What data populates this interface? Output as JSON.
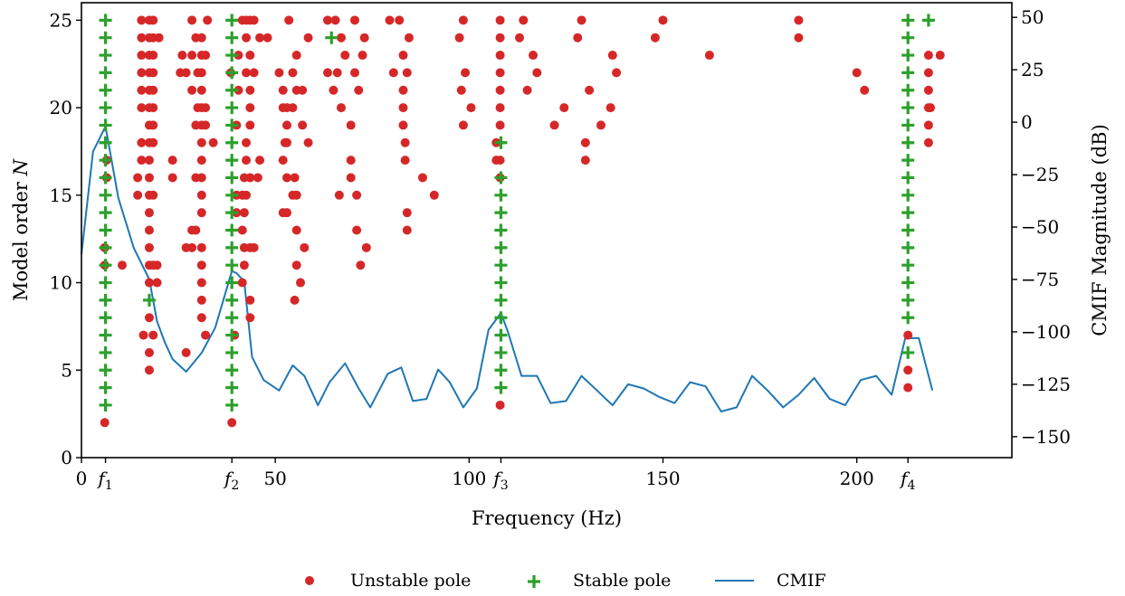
{
  "chart_data": {
    "type": "scatter",
    "xlabel": "Frequency (Hz)",
    "ylabel_left": "Model order N",
    "ylabel_left_parts": {
      "text": "Model order ",
      "italic": "N"
    },
    "ylabel_right": "CMIF Magnitude (dB)",
    "xlim": [
      0,
      240
    ],
    "ylim_left": [
      0,
      26
    ],
    "ylim_right": [
      -160,
      57
    ],
    "x_ticks": [
      {
        "value": 0,
        "label": "0"
      },
      {
        "value": 6.2,
        "label": "f",
        "sub": "1"
      },
      {
        "value": 38.8,
        "label": "f",
        "sub": "2"
      },
      {
        "value": 50,
        "label": "50"
      },
      {
        "value": 100,
        "label": "100"
      },
      {
        "value": 108.2,
        "label": "f",
        "sub": "3"
      },
      {
        "value": 150,
        "label": "150"
      },
      {
        "value": 200,
        "label": "200"
      },
      {
        "value": 213.2,
        "label": "f",
        "sub": "4"
      }
    ],
    "y_ticks_left": [
      0,
      5,
      10,
      15,
      20,
      25
    ],
    "y_ticks_right": [
      50,
      25,
      0,
      -25,
      -50,
      -75,
      -100,
      -125,
      -150
    ],
    "legend": {
      "position": "bottom-center",
      "items": [
        {
          "label": "Unstable pole",
          "marker": "circle",
          "color": "#d62728"
        },
        {
          "label": "Stable pole",
          "marker": "plus",
          "color": "#2ca02c"
        },
        {
          "label": "CMIF",
          "marker": "line",
          "color": "#1f77b4"
        }
      ]
    },
    "colors": {
      "unstable": "#d62728",
      "stable": "#2ca02c",
      "cmif": "#1f77b4"
    },
    "stable_lines": [
      {
        "x": 6.2,
        "orders": [
          3,
          4,
          5,
          6,
          7,
          8,
          9,
          10,
          11,
          12,
          13,
          14,
          15,
          16,
          17,
          18,
          19,
          20,
          21,
          22,
          23,
          24,
          25
        ]
      },
      {
        "x": 38.8,
        "orders": [
          3,
          4,
          5,
          6,
          7,
          8,
          9,
          10,
          11,
          12,
          13,
          14,
          15,
          16,
          17,
          18,
          19,
          20,
          21,
          22,
          23,
          24,
          25
        ]
      },
      {
        "x": 108.2,
        "orders": [
          4,
          5,
          6,
          7,
          8,
          9,
          10,
          11,
          12,
          13,
          14,
          15,
          16,
          18
        ]
      },
      {
        "x": 213.2,
        "orders": [
          8,
          9,
          10,
          11,
          12,
          13,
          14,
          15,
          16,
          17,
          18,
          19,
          20,
          21,
          22,
          23,
          24,
          25
        ]
      }
    ],
    "stable_extra": [
      {
        "x": 17.5,
        "y": 9
      },
      {
        "x": 64.5,
        "y": 24
      },
      {
        "x": 213.2,
        "y": 6
      },
      {
        "x": 218.5,
        "y": 25
      }
    ],
    "unstable": [
      {
        "x": 6,
        "y": 2
      },
      {
        "x": 6,
        "y": 11
      },
      {
        "x": 6,
        "y": 12
      },
      {
        "x": 6.5,
        "y": 16
      },
      {
        "x": 6.5,
        "y": 17
      },
      {
        "x": 10.5,
        "y": 11
      },
      {
        "x": 14.5,
        "y": 15
      },
      {
        "x": 14.5,
        "y": 16
      },
      {
        "x": 15.5,
        "y": 17
      },
      {
        "x": 15.5,
        "y": 18
      },
      {
        "x": 15.5,
        "y": 20
      },
      {
        "x": 15.5,
        "y": 21
      },
      {
        "x": 15.5,
        "y": 22
      },
      {
        "x": 15.5,
        "y": 23
      },
      {
        "x": 15.5,
        "y": 24
      },
      {
        "x": 15.5,
        "y": 25
      },
      {
        "x": 16,
        "y": 7
      },
      {
        "x": 17.5,
        "y": 5
      },
      {
        "x": 17.5,
        "y": 6
      },
      {
        "x": 17.5,
        "y": 8
      },
      {
        "x": 17.5,
        "y": 10
      },
      {
        "x": 17.5,
        "y": 11
      },
      {
        "x": 17.5,
        "y": 12
      },
      {
        "x": 17.5,
        "y": 13
      },
      {
        "x": 17.5,
        "y": 14
      },
      {
        "x": 17.5,
        "y": 15
      },
      {
        "x": 17.5,
        "y": 16
      },
      {
        "x": 17.5,
        "y": 17
      },
      {
        "x": 17.5,
        "y": 18
      },
      {
        "x": 17.5,
        "y": 19
      },
      {
        "x": 17.5,
        "y": 20
      },
      {
        "x": 17.5,
        "y": 21
      },
      {
        "x": 17.5,
        "y": 22
      },
      {
        "x": 17.5,
        "y": 23
      },
      {
        "x": 17.5,
        "y": 24
      },
      {
        "x": 17.5,
        "y": 25
      },
      {
        "x": 18.5,
        "y": 7
      },
      {
        "x": 18.5,
        "y": 11
      },
      {
        "x": 18.5,
        "y": 15
      },
      {
        "x": 18.5,
        "y": 18
      },
      {
        "x": 18.5,
        "y": 19
      },
      {
        "x": 18.5,
        "y": 20
      },
      {
        "x": 18.5,
        "y": 21
      },
      {
        "x": 18.5,
        "y": 22
      },
      {
        "x": 18.5,
        "y": 23
      },
      {
        "x": 18.5,
        "y": 24
      },
      {
        "x": 18.5,
        "y": 25
      },
      {
        "x": 19.5,
        "y": 10
      },
      {
        "x": 19.5,
        "y": 11
      },
      {
        "x": 20,
        "y": 24
      },
      {
        "x": 23.5,
        "y": 16
      },
      {
        "x": 23.5,
        "y": 17
      },
      {
        "x": 25.5,
        "y": 22
      },
      {
        "x": 26,
        "y": 23
      },
      {
        "x": 27,
        "y": 6
      },
      {
        "x": 27,
        "y": 12
      },
      {
        "x": 27,
        "y": 22
      },
      {
        "x": 28.5,
        "y": 12
      },
      {
        "x": 28.5,
        "y": 13
      },
      {
        "x": 28.5,
        "y": 21
      },
      {
        "x": 28.5,
        "y": 23
      },
      {
        "x": 28.5,
        "y": 25
      },
      {
        "x": 29.5,
        "y": 13
      },
      {
        "x": 29.5,
        "y": 16
      },
      {
        "x": 29.5,
        "y": 19
      },
      {
        "x": 29.5,
        "y": 24
      },
      {
        "x": 30,
        "y": 20
      },
      {
        "x": 30,
        "y": 22
      },
      {
        "x": 31,
        "y": 8
      },
      {
        "x": 31,
        "y": 9
      },
      {
        "x": 31,
        "y": 10
      },
      {
        "x": 31,
        "y": 11
      },
      {
        "x": 31,
        "y": 12
      },
      {
        "x": 31,
        "y": 14
      },
      {
        "x": 31,
        "y": 15
      },
      {
        "x": 31,
        "y": 16
      },
      {
        "x": 31,
        "y": 17
      },
      {
        "x": 31,
        "y": 18
      },
      {
        "x": 31,
        "y": 19
      },
      {
        "x": 31,
        "y": 20
      },
      {
        "x": 31,
        "y": 21
      },
      {
        "x": 31,
        "y": 22
      },
      {
        "x": 31,
        "y": 23
      },
      {
        "x": 31,
        "y": 24
      },
      {
        "x": 32,
        "y": 7
      },
      {
        "x": 32,
        "y": 19
      },
      {
        "x": 32,
        "y": 20
      },
      {
        "x": 32,
        "y": 23
      },
      {
        "x": 32.5,
        "y": 25
      },
      {
        "x": 34,
        "y": 18
      },
      {
        "x": 38.8,
        "y": 2
      },
      {
        "x": 38.5,
        "y": 22
      },
      {
        "x": 39.5,
        "y": 7
      },
      {
        "x": 40,
        "y": 14
      },
      {
        "x": 40,
        "y": 15
      },
      {
        "x": 40,
        "y": 19
      },
      {
        "x": 40.5,
        "y": 21
      },
      {
        "x": 40.5,
        "y": 23
      },
      {
        "x": 41.5,
        "y": 10
      },
      {
        "x": 41.5,
        "y": 13
      },
      {
        "x": 41.5,
        "y": 15
      },
      {
        "x": 41.5,
        "y": 25
      },
      {
        "x": 42,
        "y": 11
      },
      {
        "x": 42,
        "y": 12
      },
      {
        "x": 42,
        "y": 14
      },
      {
        "x": 42,
        "y": 16
      },
      {
        "x": 42.5,
        "y": 15
      },
      {
        "x": 42.5,
        "y": 17
      },
      {
        "x": 42.5,
        "y": 18
      },
      {
        "x": 42.5,
        "y": 22
      },
      {
        "x": 42.5,
        "y": 24
      },
      {
        "x": 42.5,
        "y": 25
      },
      {
        "x": 43.5,
        "y": 8
      },
      {
        "x": 43.5,
        "y": 9
      },
      {
        "x": 43.5,
        "y": 12
      },
      {
        "x": 43.5,
        "y": 16
      },
      {
        "x": 43.5,
        "y": 19
      },
      {
        "x": 43.5,
        "y": 20
      },
      {
        "x": 43.5,
        "y": 21
      },
      {
        "x": 43.5,
        "y": 23
      },
      {
        "x": 43.5,
        "y": 25
      },
      {
        "x": 44.5,
        "y": 12
      },
      {
        "x": 44.5,
        "y": 22
      },
      {
        "x": 44.5,
        "y": 25
      },
      {
        "x": 45.5,
        "y": 16
      },
      {
        "x": 46,
        "y": 17
      },
      {
        "x": 46,
        "y": 24
      },
      {
        "x": 48,
        "y": 24
      },
      {
        "x": 51,
        "y": 22
      },
      {
        "x": 52,
        "y": 14
      },
      {
        "x": 52,
        "y": 17
      },
      {
        "x": 52,
        "y": 20
      },
      {
        "x": 52,
        "y": 21
      },
      {
        "x": 52.5,
        "y": 18
      },
      {
        "x": 53,
        "y": 14
      },
      {
        "x": 53,
        "y": 16
      },
      {
        "x": 53,
        "y": 18
      },
      {
        "x": 53,
        "y": 19
      },
      {
        "x": 53,
        "y": 20
      },
      {
        "x": 53.5,
        "y": 25
      },
      {
        "x": 54.5,
        "y": 15
      },
      {
        "x": 54.5,
        "y": 20
      },
      {
        "x": 54.5,
        "y": 22
      },
      {
        "x": 55,
        "y": 9
      },
      {
        "x": 55,
        "y": 16
      },
      {
        "x": 55.5,
        "y": 11
      },
      {
        "x": 55.5,
        "y": 13
      },
      {
        "x": 55.5,
        "y": 15
      },
      {
        "x": 55.5,
        "y": 21
      },
      {
        "x": 55.5,
        "y": 23
      },
      {
        "x": 56.5,
        "y": 10
      },
      {
        "x": 57,
        "y": 19
      },
      {
        "x": 57,
        "y": 21
      },
      {
        "x": 57.5,
        "y": 12
      },
      {
        "x": 58.5,
        "y": 18
      },
      {
        "x": 58.5,
        "y": 24
      },
      {
        "x": 63.5,
        "y": 25
      },
      {
        "x": 63.5,
        "y": 22
      },
      {
        "x": 65,
        "y": 21
      },
      {
        "x": 65.5,
        "y": 25
      },
      {
        "x": 66,
        "y": 22
      },
      {
        "x": 66.5,
        "y": 15
      },
      {
        "x": 67,
        "y": 20
      },
      {
        "x": 67,
        "y": 24
      },
      {
        "x": 68,
        "y": 23
      },
      {
        "x": 69.5,
        "y": 16
      },
      {
        "x": 69.5,
        "y": 17
      },
      {
        "x": 69.5,
        "y": 19
      },
      {
        "x": 70.5,
        "y": 25
      },
      {
        "x": 70.5,
        "y": 22
      },
      {
        "x": 71,
        "y": 13
      },
      {
        "x": 71,
        "y": 15
      },
      {
        "x": 71.5,
        "y": 21
      },
      {
        "x": 72,
        "y": 11
      },
      {
        "x": 72.5,
        "y": 23
      },
      {
        "x": 73,
        "y": 24
      },
      {
        "x": 73.5,
        "y": 12
      },
      {
        "x": 79.5,
        "y": 25
      },
      {
        "x": 80.5,
        "y": 22
      },
      {
        "x": 82,
        "y": 25
      },
      {
        "x": 83,
        "y": 19
      },
      {
        "x": 83,
        "y": 20
      },
      {
        "x": 83,
        "y": 21
      },
      {
        "x": 83,
        "y": 23
      },
      {
        "x": 83.5,
        "y": 17
      },
      {
        "x": 83.5,
        "y": 18
      },
      {
        "x": 84,
        "y": 13
      },
      {
        "x": 84,
        "y": 14
      },
      {
        "x": 84,
        "y": 22
      },
      {
        "x": 84.5,
        "y": 24
      },
      {
        "x": 88,
        "y": 16
      },
      {
        "x": 91,
        "y": 15
      },
      {
        "x": 97.5,
        "y": 24
      },
      {
        "x": 98,
        "y": 21
      },
      {
        "x": 98.5,
        "y": 19
      },
      {
        "x": 98.5,
        "y": 25
      },
      {
        "x": 99,
        "y": 22
      },
      {
        "x": 100.5,
        "y": 20
      },
      {
        "x": 107,
        "y": 17
      },
      {
        "x": 107,
        "y": 18
      },
      {
        "x": 108,
        "y": 3
      },
      {
        "x": 108,
        "y": 16
      },
      {
        "x": 108,
        "y": 17
      },
      {
        "x": 108,
        "y": 19
      },
      {
        "x": 108,
        "y": 20
      },
      {
        "x": 108,
        "y": 21
      },
      {
        "x": 108,
        "y": 22
      },
      {
        "x": 108,
        "y": 23
      },
      {
        "x": 108,
        "y": 24
      },
      {
        "x": 108,
        "y": 25
      },
      {
        "x": 113,
        "y": 24
      },
      {
        "x": 114,
        "y": 25
      },
      {
        "x": 115,
        "y": 21
      },
      {
        "x": 116.5,
        "y": 23
      },
      {
        "x": 117.5,
        "y": 22
      },
      {
        "x": 122,
        "y": 19
      },
      {
        "x": 124.5,
        "y": 20
      },
      {
        "x": 128,
        "y": 24
      },
      {
        "x": 129,
        "y": 25
      },
      {
        "x": 130,
        "y": 17
      },
      {
        "x": 130,
        "y": 18
      },
      {
        "x": 131,
        "y": 21
      },
      {
        "x": 134,
        "y": 19
      },
      {
        "x": 136.5,
        "y": 20
      },
      {
        "x": 137,
        "y": 23
      },
      {
        "x": 138,
        "y": 22
      },
      {
        "x": 148,
        "y": 24
      },
      {
        "x": 150,
        "y": 25
      },
      {
        "x": 162,
        "y": 23
      },
      {
        "x": 185,
        "y": 24
      },
      {
        "x": 185,
        "y": 25
      },
      {
        "x": 200,
        "y": 22
      },
      {
        "x": 202,
        "y": 21
      },
      {
        "x": 213.2,
        "y": 4
      },
      {
        "x": 213.2,
        "y": 5
      },
      {
        "x": 213.2,
        "y": 7
      },
      {
        "x": 218.5,
        "y": 18
      },
      {
        "x": 218.5,
        "y": 19
      },
      {
        "x": 218.5,
        "y": 20
      },
      {
        "x": 218.5,
        "y": 21
      },
      {
        "x": 218.5,
        "y": 22
      },
      {
        "x": 218.5,
        "y": 23
      },
      {
        "x": 219,
        "y": 20
      },
      {
        "x": 221.5,
        "y": 23
      }
    ],
    "cmif": [
      {
        "x": 0,
        "y": -63
      },
      {
        "x": 3,
        "y": -14
      },
      {
        "x": 6.2,
        "y": -2
      },
      {
        "x": 9.5,
        "y": -36
      },
      {
        "x": 13.5,
        "y": -60
      },
      {
        "x": 17.5,
        "y": -75
      },
      {
        "x": 19.5,
        "y": -95
      },
      {
        "x": 21.5,
        "y": -105
      },
      {
        "x": 23.5,
        "y": -113
      },
      {
        "x": 27,
        "y": -119
      },
      {
        "x": 31,
        "y": -110
      },
      {
        "x": 34.5,
        "y": -98
      },
      {
        "x": 38.8,
        "y": -71
      },
      {
        "x": 40,
        "y": -72
      },
      {
        "x": 42,
        "y": -76
      },
      {
        "x": 44,
        "y": -112
      },
      {
        "x": 47,
        "y": -123
      },
      {
        "x": 51,
        "y": -128
      },
      {
        "x": 54.5,
        "y": -116
      },
      {
        "x": 57.5,
        "y": -121
      },
      {
        "x": 61,
        "y": -135
      },
      {
        "x": 64,
        "y": -124
      },
      {
        "x": 68,
        "y": -115
      },
      {
        "x": 71.5,
        "y": -127
      },
      {
        "x": 74.5,
        "y": -136
      },
      {
        "x": 79,
        "y": -120
      },
      {
        "x": 82.5,
        "y": -117
      },
      {
        "x": 85.5,
        "y": -133
      },
      {
        "x": 89,
        "y": -132
      },
      {
        "x": 92,
        "y": -118
      },
      {
        "x": 95,
        "y": -124
      },
      {
        "x": 98.5,
        "y": -136
      },
      {
        "x": 102,
        "y": -127
      },
      {
        "x": 105,
        "y": -99
      },
      {
        "x": 108.2,
        "y": -91
      },
      {
        "x": 110,
        "y": -100
      },
      {
        "x": 113.5,
        "y": -121
      },
      {
        "x": 117.5,
        "y": -121
      },
      {
        "x": 121,
        "y": -134
      },
      {
        "x": 125,
        "y": -133
      },
      {
        "x": 129,
        "y": -121
      },
      {
        "x": 133,
        "y": -128
      },
      {
        "x": 137,
        "y": -135
      },
      {
        "x": 141,
        "y": -125
      },
      {
        "x": 145,
        "y": -127
      },
      {
        "x": 149,
        "y": -131
      },
      {
        "x": 153,
        "y": -134
      },
      {
        "x": 157,
        "y": -124
      },
      {
        "x": 161,
        "y": -126
      },
      {
        "x": 165,
        "y": -138
      },
      {
        "x": 169,
        "y": -136
      },
      {
        "x": 173,
        "y": -121
      },
      {
        "x": 177,
        "y": -128
      },
      {
        "x": 181,
        "y": -136
      },
      {
        "x": 185,
        "y": -130
      },
      {
        "x": 189,
        "y": -122
      },
      {
        "x": 193,
        "y": -132
      },
      {
        "x": 197,
        "y": -135
      },
      {
        "x": 201,
        "y": -123
      },
      {
        "x": 205,
        "y": -121
      },
      {
        "x": 209,
        "y": -130
      },
      {
        "x": 212.5,
        "y": -103
      },
      {
        "x": 216,
        "y": -103
      },
      {
        "x": 219.5,
        "y": -128
      }
    ]
  }
}
